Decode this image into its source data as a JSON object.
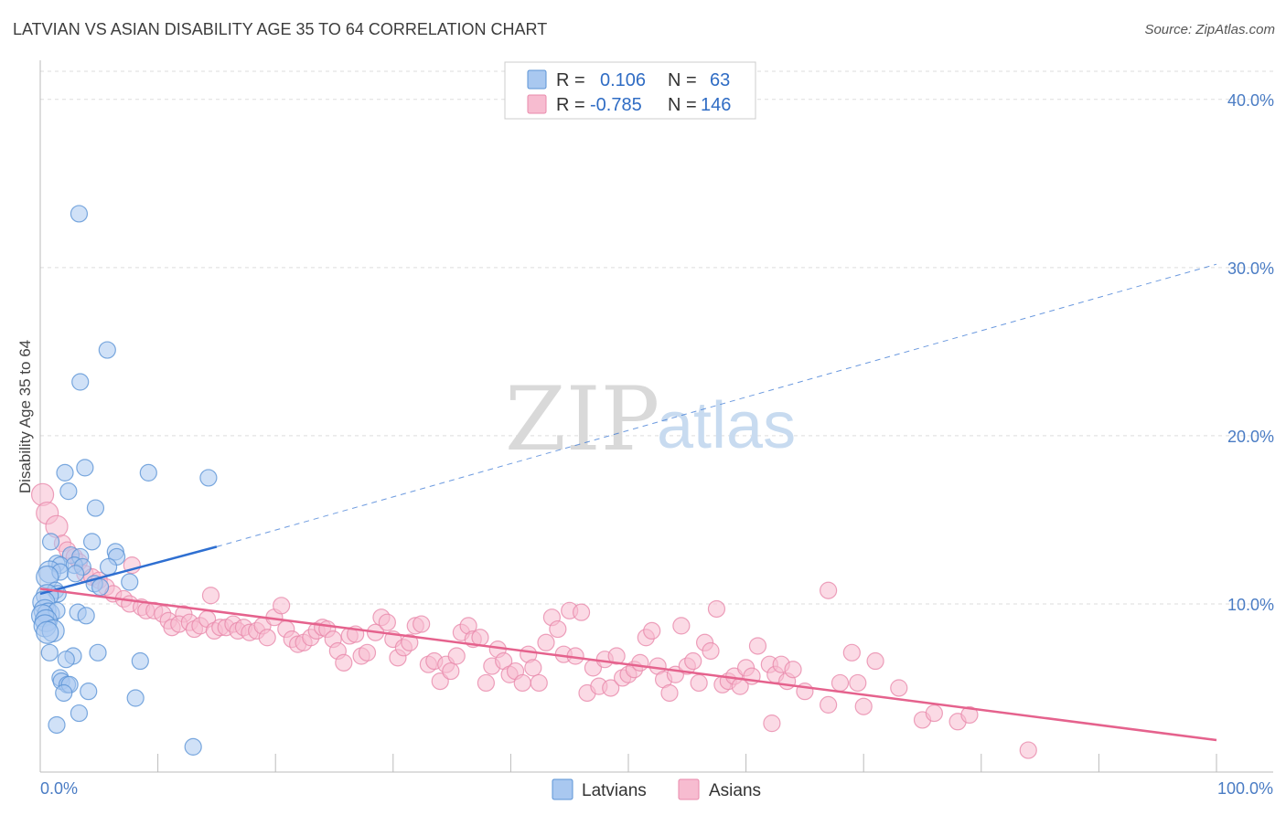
{
  "title": "LATVIAN VS ASIAN DISABILITY AGE 35 TO 64 CORRELATION CHART",
  "source": "Source: ZipAtlas.com",
  "watermark": {
    "zip": "ZIP",
    "atlas": "atlas"
  },
  "colors": {
    "latvians_fill": "#a9c8f0",
    "latvians_stroke": "#5b93d6",
    "latvians_line": "#2e6fd1",
    "asians_fill": "#f7bcd0",
    "asians_stroke": "#e88aab",
    "asians_line": "#e5628d",
    "grid": "#dddddd",
    "axis_text": "#4a7cc4"
  },
  "legend": {
    "rows": [
      {
        "r_label": "R =",
        "r_value": "0.106",
        "n_label": "N =",
        "n_value": "63"
      },
      {
        "r_label": "R =",
        "r_value": "-0.785",
        "n_label": "N =",
        "n_value": "146"
      }
    ]
  },
  "chart_data": {
    "type": "scatter",
    "title": "LATVIAN VS ASIAN DISABILITY AGE 35 TO 64 CORRELATION CHART",
    "xlabel": "",
    "ylabel": "Disability Age 35 to 64",
    "xlim": [
      0,
      100
    ],
    "ylim": [
      0,
      42
    ],
    "x_ticks": [
      "0.0%",
      "100.0%"
    ],
    "y_ticks": [
      {
        "value": 10,
        "label": "10.0%"
      },
      {
        "value": 20,
        "label": "20.0%"
      },
      {
        "value": 30,
        "label": "30.0%"
      },
      {
        "value": 40,
        "label": "40.0%"
      }
    ],
    "grid": true,
    "legend_position": "bottom",
    "series": [
      {
        "name": "Latvians",
        "r": 0.106,
        "n": 63,
        "trend": {
          "x0": 0,
          "y0": 10.6,
          "x1": 15,
          "y1": 13.4,
          "dashed_to_x": 100,
          "dashed_to_y": 30.2
        },
        "points": [
          [
            3.3,
            33.2
          ],
          [
            5.7,
            25.1
          ],
          [
            3.4,
            23.2
          ],
          [
            3.8,
            18.1
          ],
          [
            2.1,
            17.8
          ],
          [
            9.2,
            17.8
          ],
          [
            14.3,
            17.5
          ],
          [
            2.4,
            16.7
          ],
          [
            4.7,
            15.7
          ],
          [
            0.9,
            13.7
          ],
          [
            4.4,
            13.7
          ],
          [
            6.4,
            13.1
          ],
          [
            6.5,
            12.8
          ],
          [
            1.4,
            12.4
          ],
          [
            2.6,
            12.9
          ],
          [
            3.4,
            12.8
          ],
          [
            1.7,
            12.3
          ],
          [
            2.9,
            12.3
          ],
          [
            3.6,
            12.2
          ],
          [
            5.8,
            12.2
          ],
          [
            0.8,
            11.9
          ],
          [
            1.7,
            11.9
          ],
          [
            3.0,
            11.8
          ],
          [
            0.6,
            11.6
          ],
          [
            4.6,
            11.2
          ],
          [
            7.6,
            11.3
          ],
          [
            5.1,
            11.0
          ],
          [
            1.3,
            10.8
          ],
          [
            1.5,
            10.6
          ],
          [
            0.6,
            10.5
          ],
          [
            0.3,
            10.1
          ],
          [
            0.4,
            9.6
          ],
          [
            0.7,
            9.4
          ],
          [
            1.4,
            9.6
          ],
          [
            3.2,
            9.5
          ],
          [
            0.2,
            9.3
          ],
          [
            3.9,
            9.3
          ],
          [
            0.5,
            9.0
          ],
          [
            0.4,
            8.7
          ],
          [
            1.1,
            8.4
          ],
          [
            0.6,
            8.3
          ],
          [
            0.8,
            7.1
          ],
          [
            2.8,
            6.9
          ],
          [
            4.9,
            7.1
          ],
          [
            2.2,
            6.7
          ],
          [
            8.5,
            6.6
          ],
          [
            1.7,
            5.6
          ],
          [
            1.8,
            5.4
          ],
          [
            2.3,
            5.2
          ],
          [
            2.5,
            5.2
          ],
          [
            4.1,
            4.8
          ],
          [
            2.0,
            4.7
          ],
          [
            8.1,
            4.4
          ],
          [
            3.3,
            3.5
          ],
          [
            1.4,
            2.8
          ],
          [
            13.0,
            1.5
          ]
        ]
      },
      {
        "name": "Asians",
        "r": -0.785,
        "n": 146,
        "trend": {
          "x0": 0,
          "y0": 10.9,
          "x1": 100,
          "y1": 1.9
        },
        "points": [
          [
            0.2,
            16.5
          ],
          [
            0.6,
            15.4
          ],
          [
            1.4,
            14.6
          ],
          [
            1.9,
            13.6
          ],
          [
            2.3,
            13.2
          ],
          [
            2.9,
            12.8
          ],
          [
            3.3,
            12.5
          ],
          [
            7.8,
            12.3
          ],
          [
            3.8,
            11.8
          ],
          [
            4.4,
            11.6
          ],
          [
            5.0,
            11.4
          ],
          [
            5.6,
            11.0
          ],
          [
            6.2,
            10.6
          ],
          [
            7.1,
            10.3
          ],
          [
            14.5,
            10.5
          ],
          [
            7.6,
            10.0
          ],
          [
            8.6,
            9.8
          ],
          [
            9.0,
            9.6
          ],
          [
            9.7,
            9.6
          ],
          [
            10.4,
            9.4
          ],
          [
            12.2,
            9.4
          ],
          [
            10.9,
            9.0
          ],
          [
            11.2,
            8.6
          ],
          [
            11.8,
            8.8
          ],
          [
            12.7,
            8.9
          ],
          [
            13.1,
            8.5
          ],
          [
            13.6,
            8.7
          ],
          [
            14.2,
            9.1
          ],
          [
            14.8,
            8.4
          ],
          [
            15.3,
            8.6
          ],
          [
            15.8,
            8.6
          ],
          [
            16.4,
            8.8
          ],
          [
            16.8,
            8.4
          ],
          [
            17.3,
            8.6
          ],
          [
            17.8,
            8.3
          ],
          [
            18.4,
            8.4
          ],
          [
            18.9,
            8.7
          ],
          [
            19.3,
            8.0
          ],
          [
            19.9,
            9.2
          ],
          [
            20.5,
            9.9
          ],
          [
            20.9,
            8.5
          ],
          [
            21.4,
            7.9
          ],
          [
            21.9,
            7.6
          ],
          [
            22.4,
            7.7
          ],
          [
            23.0,
            8.0
          ],
          [
            23.5,
            8.4
          ],
          [
            24.0,
            8.6
          ],
          [
            24.4,
            8.5
          ],
          [
            24.9,
            7.9
          ],
          [
            25.3,
            7.2
          ],
          [
            25.8,
            6.5
          ],
          [
            26.3,
            8.1
          ],
          [
            26.8,
            8.2
          ],
          [
            27.3,
            6.9
          ],
          [
            27.8,
            7.1
          ],
          [
            28.5,
            8.3
          ],
          [
            29.0,
            9.2
          ],
          [
            29.5,
            8.9
          ],
          [
            30.0,
            7.9
          ],
          [
            30.4,
            6.8
          ],
          [
            30.9,
            7.4
          ],
          [
            31.4,
            7.7
          ],
          [
            31.9,
            8.7
          ],
          [
            32.4,
            8.8
          ],
          [
            33.0,
            6.4
          ],
          [
            33.5,
            6.6
          ],
          [
            34.0,
            5.4
          ],
          [
            34.5,
            6.4
          ],
          [
            34.9,
            6.0
          ],
          [
            35.4,
            6.9
          ],
          [
            35.8,
            8.3
          ],
          [
            36.4,
            8.7
          ],
          [
            36.8,
            7.9
          ],
          [
            37.4,
            8.0
          ],
          [
            37.9,
            5.3
          ],
          [
            38.4,
            6.3
          ],
          [
            38.9,
            7.3
          ],
          [
            39.4,
            6.6
          ],
          [
            39.9,
            5.8
          ],
          [
            40.4,
            6.0
          ],
          [
            41.0,
            5.3
          ],
          [
            41.5,
            7.0
          ],
          [
            41.9,
            6.2
          ],
          [
            42.4,
            5.3
          ],
          [
            43.0,
            7.7
          ],
          [
            43.5,
            9.2
          ],
          [
            44.0,
            8.5
          ],
          [
            44.5,
            7.0
          ],
          [
            45.0,
            9.6
          ],
          [
            45.5,
            6.9
          ],
          [
            46.0,
            9.5
          ],
          [
            46.5,
            4.7
          ],
          [
            47.0,
            6.2
          ],
          [
            47.5,
            5.1
          ],
          [
            48.0,
            6.7
          ],
          [
            48.5,
            5.0
          ],
          [
            49.0,
            6.9
          ],
          [
            49.5,
            5.6
          ],
          [
            50.0,
            5.8
          ],
          [
            50.5,
            6.1
          ],
          [
            51.0,
            6.5
          ],
          [
            51.5,
            8.0
          ],
          [
            52.0,
            8.4
          ],
          [
            52.5,
            6.3
          ],
          [
            53.0,
            5.5
          ],
          [
            53.5,
            4.7
          ],
          [
            54.0,
            5.8
          ],
          [
            54.5,
            8.7
          ],
          [
            55.0,
            6.3
          ],
          [
            55.5,
            6.6
          ],
          [
            56.0,
            5.3
          ],
          [
            56.5,
            7.7
          ],
          [
            57.0,
            7.2
          ],
          [
            57.5,
            9.7
          ],
          [
            58.0,
            5.2
          ],
          [
            58.5,
            5.4
          ],
          [
            59.0,
            5.7
          ],
          [
            59.5,
            5.1
          ],
          [
            60.0,
            6.2
          ],
          [
            60.5,
            5.7
          ],
          [
            61.0,
            7.5
          ],
          [
            62.0,
            6.4
          ],
          [
            62.5,
            5.8
          ],
          [
            63.0,
            6.4
          ],
          [
            63.5,
            5.4
          ],
          [
            64.0,
            6.1
          ],
          [
            65.0,
            4.8
          ],
          [
            67.0,
            4.0
          ],
          [
            68.0,
            5.3
          ],
          [
            69.0,
            7.1
          ],
          [
            69.5,
            5.3
          ],
          [
            70.0,
            3.9
          ],
          [
            71.0,
            6.6
          ],
          [
            73.0,
            5.0
          ],
          [
            75.0,
            3.1
          ],
          [
            76.0,
            3.5
          ],
          [
            78.0,
            3.0
          ],
          [
            79.0,
            3.4
          ],
          [
            84.0,
            1.3
          ],
          [
            62.2,
            2.9
          ],
          [
            67.0,
            10.8
          ]
        ]
      }
    ]
  }
}
